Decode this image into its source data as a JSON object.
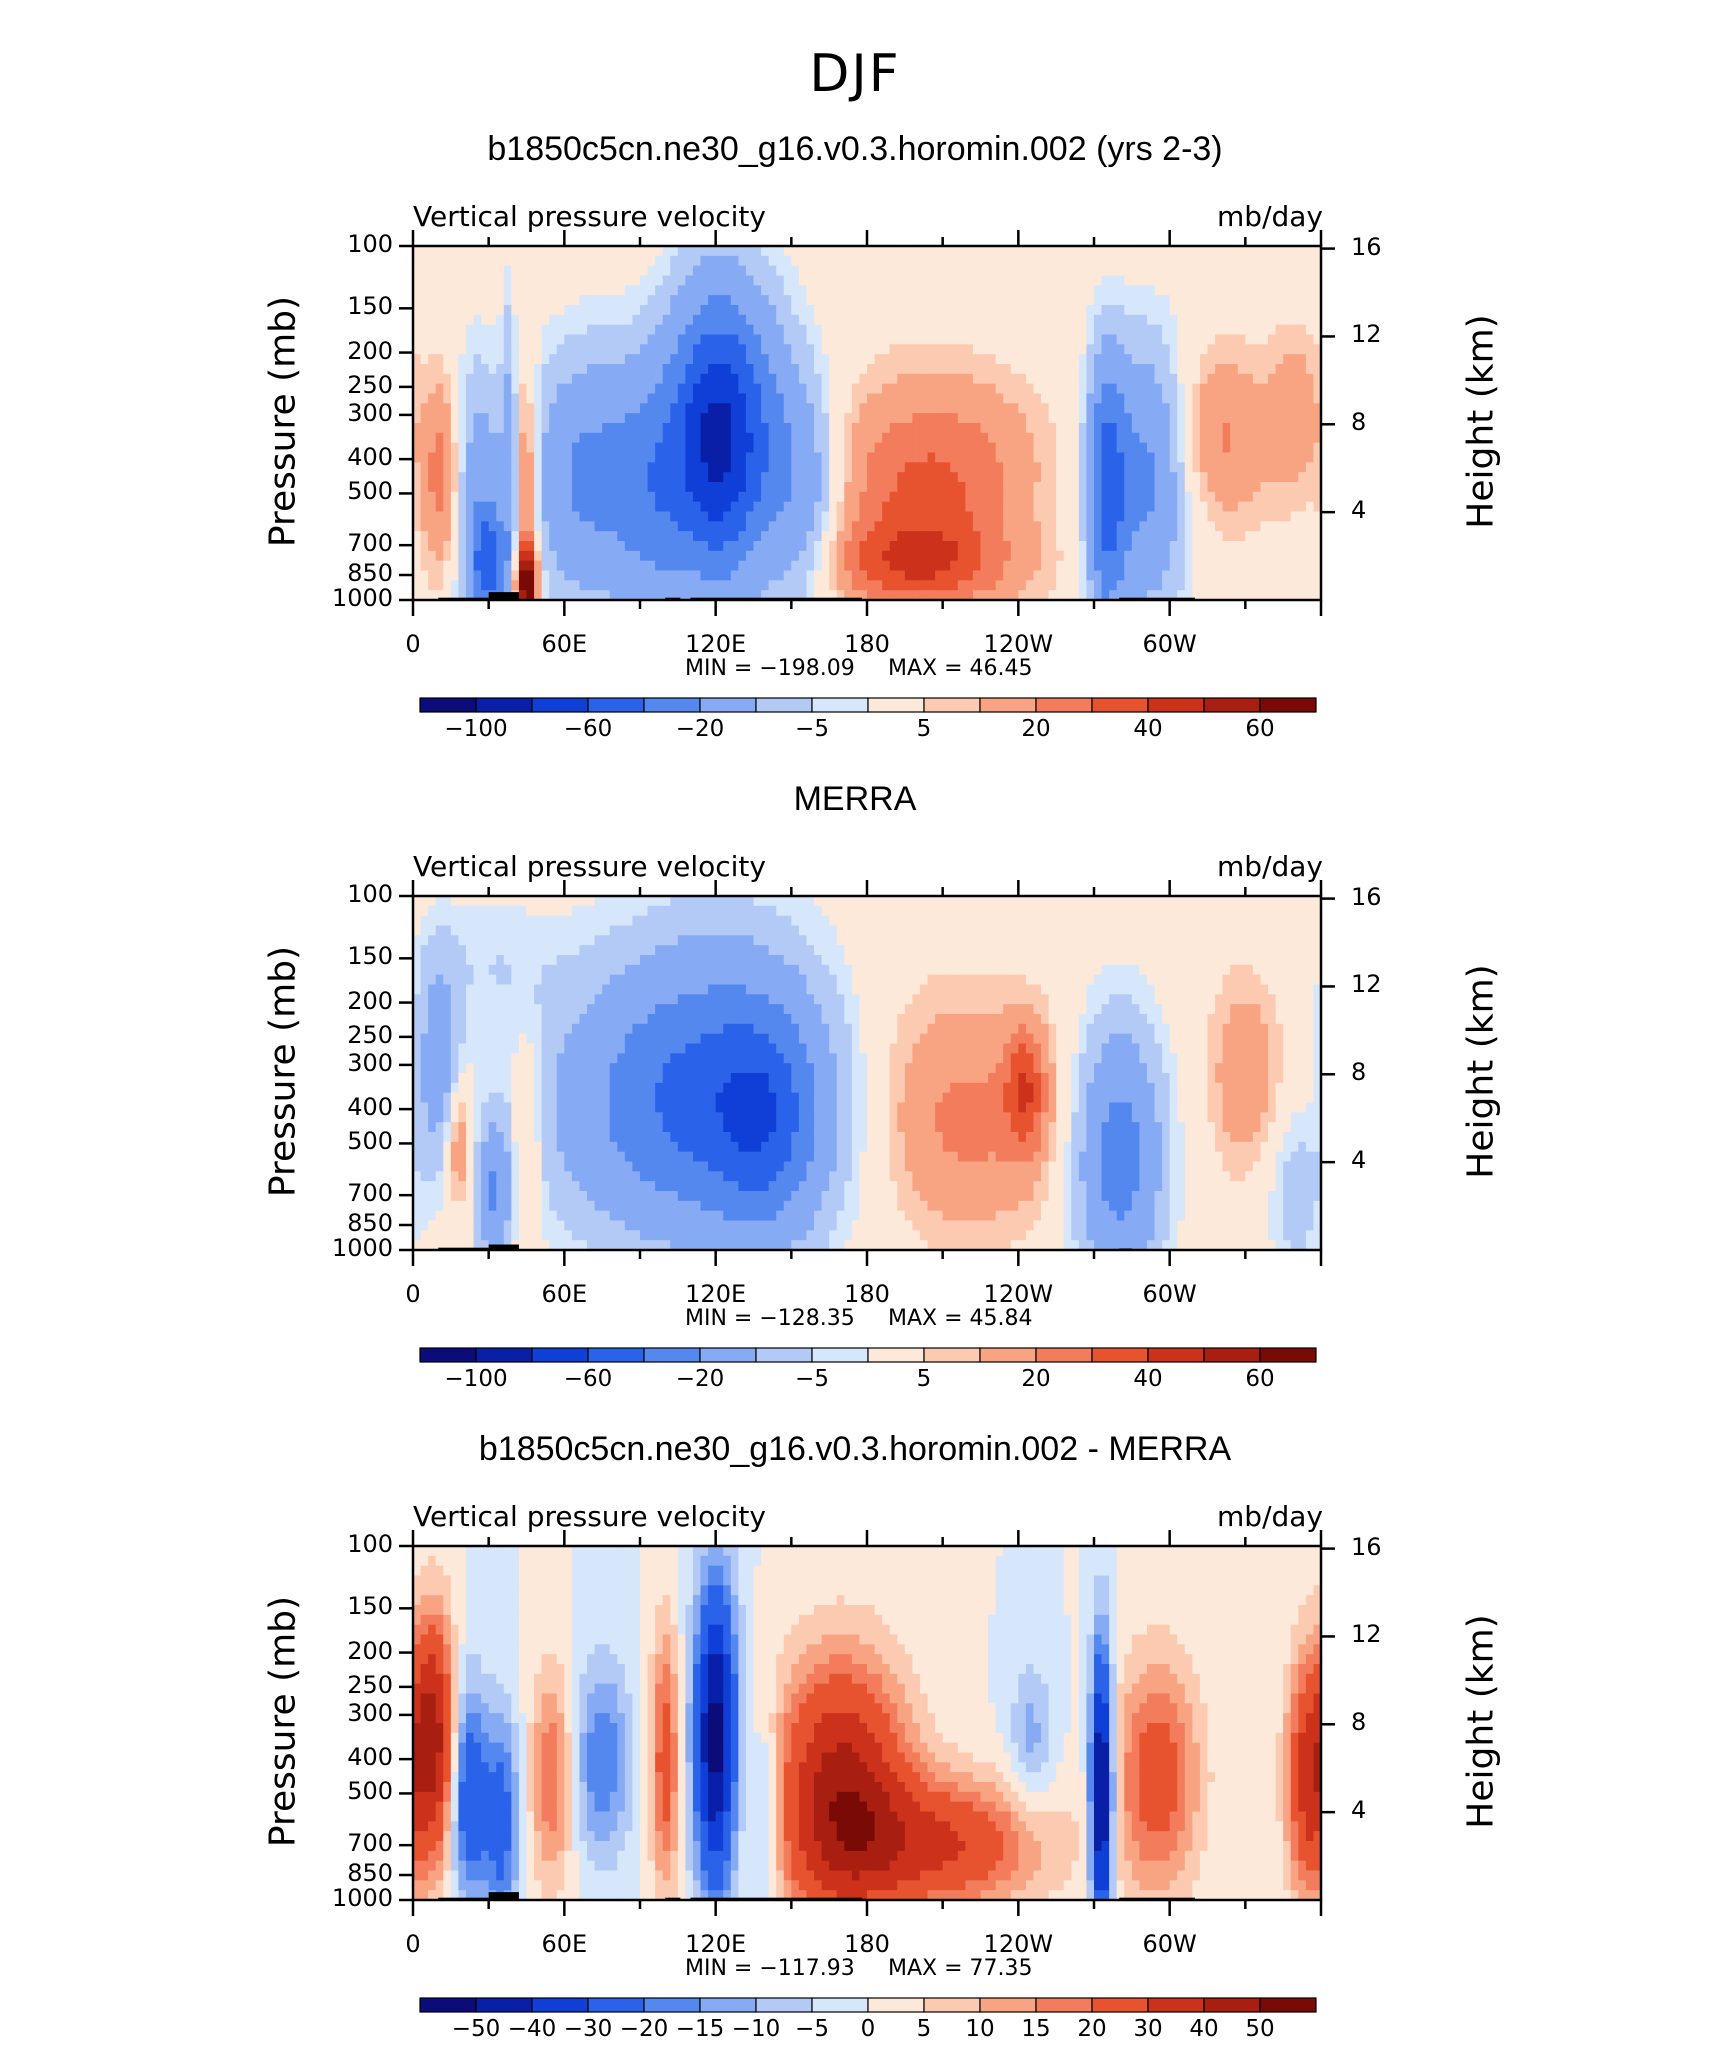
{
  "figure_title": "DJF",
  "colors": {
    "scale": [
      "#0b0b7a",
      "#0a1fa8",
      "#0f3fd6",
      "#2a63ea",
      "#5488ee",
      "#86aaf4",
      "#b3caf7",
      "#d6e6fb",
      "#fde9d9",
      "#fccab0",
      "#f8a483",
      "#f27c5b",
      "#e8532f",
      "#cc321b",
      "#a81e10",
      "#7a0a05"
    ],
    "land": "#000000"
  },
  "chart_data": [
    {
      "type": "heatmap",
      "title": "b1850c5cn.ne30_g16.v0.3.horomin.002 (yrs 2-3)",
      "left_label": "Vertical pressure velocity",
      "right_label": "mb/day",
      "ylabel": "Pressure (mb)",
      "ylabel_right": "Height (km)",
      "x_ticks": [
        "0",
        "60E",
        "120E",
        "180",
        "120W",
        "60W"
      ],
      "y_ticks": [
        "100",
        "150",
        "200",
        "250",
        "300",
        "400",
        "500",
        "700",
        "850",
        "1000"
      ],
      "y_ticks_right": [
        "16",
        "12",
        "8",
        "4"
      ],
      "min_text": "MIN = −198.09",
      "max_text": "MAX = 46.45",
      "min": -198.09,
      "max": 46.45,
      "colorbar_labels": [
        "−100",
        "−60",
        "−20",
        "−5",
        "5",
        "20",
        "40",
        "60"
      ],
      "features": [
        {
          "lon": 12,
          "plev": 450,
          "val": 30,
          "sx": 6,
          "sy": 0.9
        },
        {
          "lon": 25,
          "plev": 500,
          "val": -30,
          "sx": 8,
          "sy": 1.2
        },
        {
          "lon": 30,
          "plev": 800,
          "val": -60,
          "sx": 5,
          "sy": 0.5
        },
        {
          "lon": 38,
          "plev": 400,
          "val": -20,
          "sx": 2,
          "sy": 1.5
        },
        {
          "lon": 45,
          "plev": 550,
          "val": 35,
          "sx": 3,
          "sy": 1.2
        },
        {
          "lon": 45,
          "plev": 900,
          "val": 60,
          "sx": 3,
          "sy": 0.3
        },
        {
          "lon": 70,
          "plev": 450,
          "val": -45,
          "sx": 16,
          "sy": 1.1
        },
        {
          "lon": 95,
          "plev": 500,
          "val": -35,
          "sx": 10,
          "sy": 1.2
        },
        {
          "lon": 118,
          "plev": 350,
          "val": -90,
          "sx": 12,
          "sy": 1.3
        },
        {
          "lon": 135,
          "plev": 350,
          "val": -40,
          "sx": 12,
          "sy": 1.3
        },
        {
          "lon": 155,
          "plev": 500,
          "val": -30,
          "sx": 10,
          "sy": 1.1
        },
        {
          "lon": 200,
          "plev": 500,
          "val": 30,
          "sx": 25,
          "sy": 1.0
        },
        {
          "lon": 230,
          "plev": 400,
          "val": 8,
          "sx": 20,
          "sy": 0.8
        },
        {
          "lon": 200,
          "plev": 800,
          "val": 25,
          "sx": 28,
          "sy": 0.4
        },
        {
          "lon": 275,
          "plev": 500,
          "val": -60,
          "sx": 5,
          "sy": 1.2
        },
        {
          "lon": 290,
          "plev": 450,
          "val": -45,
          "sx": 12,
          "sy": 1.2
        },
        {
          "lon": 320,
          "plev": 350,
          "val": 22,
          "sx": 14,
          "sy": 0.8
        },
        {
          "lon": 350,
          "plev": 300,
          "val": 15,
          "sx": 8,
          "sy": 0.8
        }
      ]
    },
    {
      "type": "heatmap",
      "title": "MERRA",
      "left_label": "Vertical pressure velocity",
      "right_label": "mb/day",
      "ylabel": "Pressure (mb)",
      "ylabel_right": "Height (km)",
      "x_ticks": [
        "0",
        "60E",
        "120E",
        "180",
        "120W",
        "60W"
      ],
      "y_ticks": [
        "100",
        "150",
        "200",
        "250",
        "300",
        "400",
        "500",
        "700",
        "850",
        "1000"
      ],
      "y_ticks_right": [
        "16",
        "12",
        "8",
        "4"
      ],
      "min_text": "MIN = −128.35",
      "max_text": "MAX = 45.84",
      "min": -128.35,
      "max": 45.84,
      "colorbar_labels": [
        "−100",
        "−60",
        "−20",
        "−5",
        "5",
        "20",
        "40",
        "60"
      ],
      "features": [
        {
          "lon": 10,
          "plev": 300,
          "val": -30,
          "sx": 6,
          "sy": 1.0
        },
        {
          "lon": 18,
          "plev": 500,
          "val": 25,
          "sx": 4,
          "sy": 0.6
        },
        {
          "lon": 32,
          "plev": 700,
          "val": -40,
          "sx": 5,
          "sy": 0.6
        },
        {
          "lon": 45,
          "plev": 500,
          "val": 18,
          "sx": 4,
          "sy": 1.0
        },
        {
          "lon": 110,
          "plev": 400,
          "val": -45,
          "sx": 40,
          "sy": 1.2
        },
        {
          "lon": 140,
          "plev": 450,
          "val": -35,
          "sx": 14,
          "sy": 1.0
        },
        {
          "lon": 120,
          "plev": 300,
          "val": -25,
          "sx": 30,
          "sy": 1.4
        },
        {
          "lon": 220,
          "plev": 450,
          "val": 20,
          "sx": 25,
          "sy": 1.0
        },
        {
          "lon": 243,
          "plev": 350,
          "val": 30,
          "sx": 6,
          "sy": 0.6
        },
        {
          "lon": 200,
          "plev": 300,
          "val": 6,
          "sx": 30,
          "sy": 1.2
        },
        {
          "lon": 280,
          "plev": 550,
          "val": -50,
          "sx": 12,
          "sy": 1.2
        },
        {
          "lon": 330,
          "plev": 320,
          "val": 18,
          "sx": 10,
          "sy": 0.9
        },
        {
          "lon": 350,
          "plev": 700,
          "val": -15,
          "sx": 8,
          "sy": 0.8
        },
        {
          "lon": 30,
          "plev": 150,
          "val": -8,
          "sx": 20,
          "sy": 0.6
        }
      ]
    },
    {
      "type": "heatmap",
      "title": "b1850c5cn.ne30_g16.v0.3.horomin.002 - MERRA",
      "left_label": "Vertical pressure velocity",
      "right_label": "mb/day",
      "ylabel": "Pressure (mb)",
      "ylabel_right": "Height (km)",
      "x_ticks": [
        "0",
        "60E",
        "120E",
        "180",
        "120W",
        "60W"
      ],
      "y_ticks": [
        "100",
        "150",
        "200",
        "250",
        "300",
        "400",
        "500",
        "700",
        "850",
        "1000"
      ],
      "y_ticks_right": [
        "16",
        "12",
        "8",
        "4"
      ],
      "min_text": "MIN = −117.93",
      "max_text": "MAX = 77.35",
      "min": -117.93,
      "max": 77.35,
      "colorbar_labels": [
        "−50",
        "−40",
        "−30",
        "−20",
        "−15",
        "−10",
        "−5",
        "0",
        "5",
        "10",
        "15",
        "20",
        "30",
        "40",
        "50"
      ],
      "features": [
        {
          "lon": 8,
          "plev": 350,
          "val": 45,
          "sx": 6,
          "sy": 1.1
        },
        {
          "lon": 22,
          "plev": 500,
          "val": -30,
          "sx": 5,
          "sy": 1.0
        },
        {
          "lon": 35,
          "plev": 600,
          "val": -25,
          "sx": 5,
          "sy": 1.0
        },
        {
          "lon": 55,
          "plev": 450,
          "val": 20,
          "sx": 6,
          "sy": 1.0
        },
        {
          "lon": 75,
          "plev": 400,
          "val": -20,
          "sx": 8,
          "sy": 0.9
        },
        {
          "lon": 100,
          "plev": 400,
          "val": 25,
          "sx": 4,
          "sy": 1.2
        },
        {
          "lon": 120,
          "plev": 350,
          "val": -55,
          "sx": 6,
          "sy": 1.4
        },
        {
          "lon": 140,
          "plev": 600,
          "val": -15,
          "sx": 4,
          "sy": 1.0
        },
        {
          "lon": 170,
          "plev": 500,
          "val": 45,
          "sx": 18,
          "sy": 1.2
        },
        {
          "lon": 210,
          "plev": 700,
          "val": 30,
          "sx": 28,
          "sy": 0.6
        },
        {
          "lon": 245,
          "plev": 350,
          "val": -12,
          "sx": 6,
          "sy": 0.7
        },
        {
          "lon": 273,
          "plev": 500,
          "val": -60,
          "sx": 3,
          "sy": 1.3
        },
        {
          "lon": 295,
          "plev": 450,
          "val": 25,
          "sx": 12,
          "sy": 1.1
        },
        {
          "lon": 355,
          "plev": 450,
          "val": 35,
          "sx": 6,
          "sy": 1.1
        }
      ]
    }
  ]
}
